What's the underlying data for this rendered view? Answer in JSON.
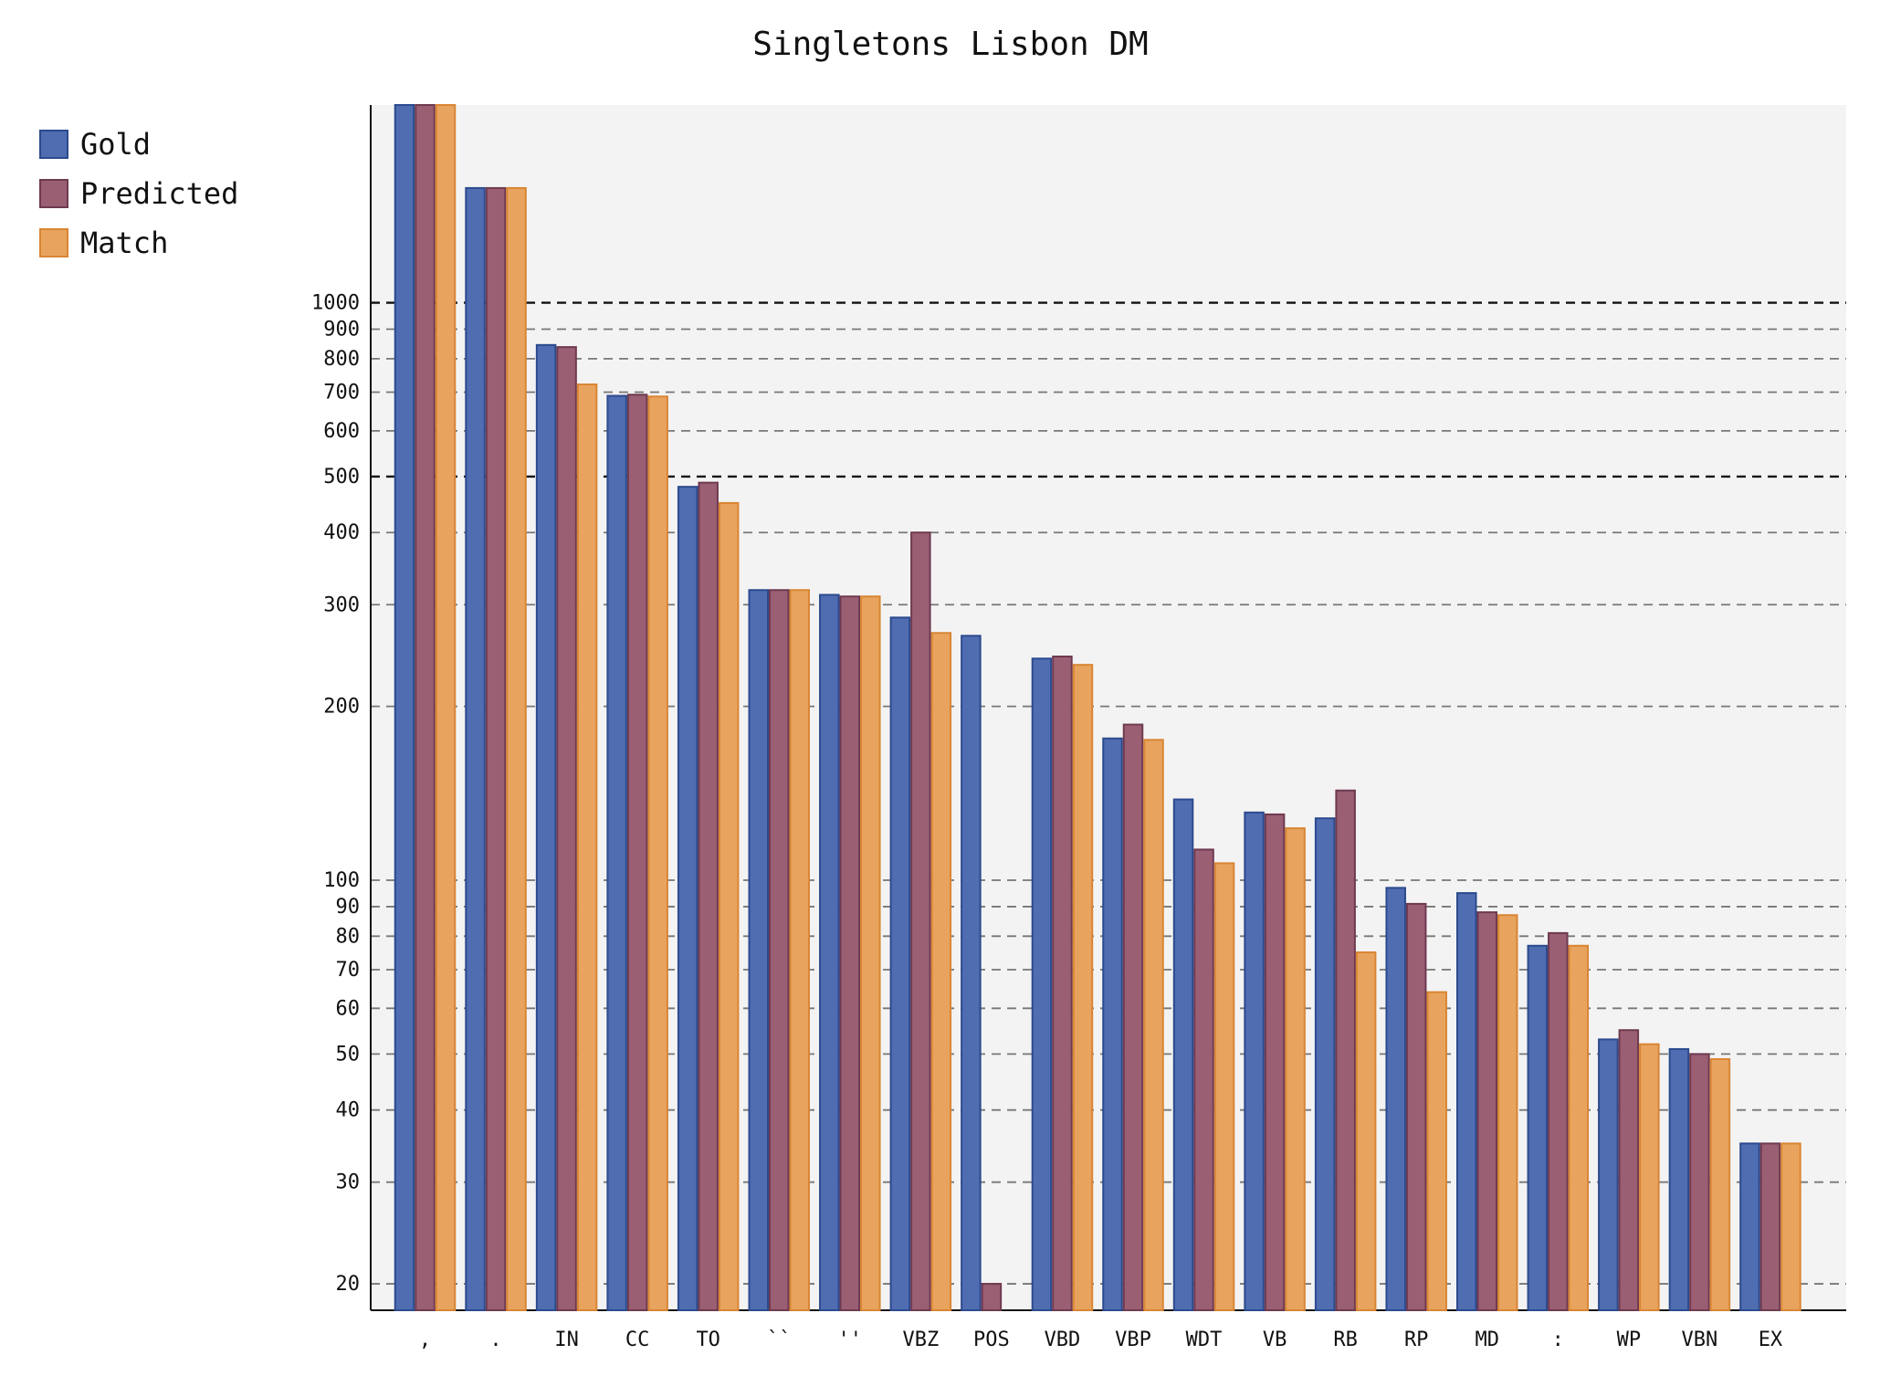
{
  "chart_data": {
    "type": "bar",
    "title": "Singletons Lisbon DM",
    "xlabel": "",
    "ylabel": "",
    "scale": "log",
    "ylim": [
      18,
      2200
    ],
    "yticks": [
      20,
      30,
      40,
      50,
      60,
      70,
      80,
      90,
      100,
      200,
      300,
      400,
      500,
      600,
      700,
      800,
      900,
      1000
    ],
    "grid": "horizontal dashed",
    "legend_position": "top-left",
    "categories": [
      ",",
      ".",
      "IN",
      "CC",
      "TO",
      "``",
      "''",
      "VBZ",
      "POS",
      "VBD",
      "VBP",
      "WDT",
      "VB",
      "RB",
      "RP",
      "MD",
      ":",
      "WP",
      "VBN",
      "EX"
    ],
    "series": [
      {
        "name": "Gold",
        "color": "#4f6db0",
        "values": [
          2200,
          1580,
          845,
          690,
          480,
          318,
          312,
          285,
          265,
          242,
          176,
          138,
          131,
          128,
          97,
          95,
          77,
          53,
          51,
          35
        ]
      },
      {
        "name": "Predicted",
        "color": "#9a5f73",
        "values": [
          2200,
          1580,
          838,
          693,
          488,
          318,
          310,
          400,
          20,
          244,
          186,
          113,
          130,
          143,
          91,
          88,
          81,
          55,
          50,
          35
        ]
      },
      {
        "name": "Match",
        "color": "#e8a45e",
        "values": [
          2200,
          1580,
          722,
          688,
          450,
          318,
          310,
          268,
          null,
          236,
          175,
          107,
          123,
          75,
          64,
          87,
          77,
          52,
          49,
          35
        ]
      }
    ]
  }
}
